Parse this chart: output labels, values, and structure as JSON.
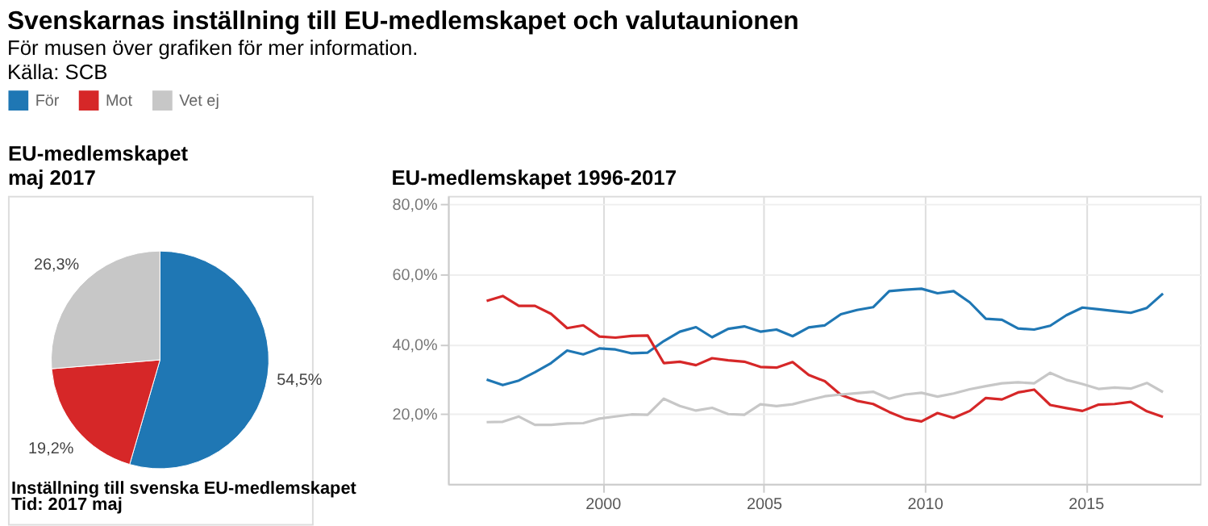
{
  "chart_data": [
    {
      "type": "other",
      "title": "Svenskarnas inställning till EU-medlemskapet och valutaunionen",
      "subtitle": "För musen över grafiken för mer information.",
      "annotations": [
        "Källa: SCB"
      ]
    },
    {
      "type": "pie",
      "title": "EU-medlemskapet\nmaj 2017",
      "categories": [
        "För",
        "Mot",
        "Vet ej"
      ],
      "values": [
        54.5,
        19.2,
        26.3
      ],
      "colors": [
        "#1f77b4",
        "#d62728",
        "#c7c7c7"
      ],
      "legend": "top",
      "value_labels": [
        "54,5%",
        "19,2%",
        "26,3%"
      ],
      "annotations": [
        "Inställning till svenska EU-medlemskapet",
        "Tid: 2017 maj"
      ]
    },
    {
      "type": "line",
      "title": "EU-medlemskapet 1996-2017",
      "x": [
        1996.4,
        1996.9,
        1997.4,
        1997.9,
        1998.4,
        1998.9,
        1999.4,
        1999.9,
        2000.4,
        2000.9,
        2001.4,
        2001.9,
        2002.4,
        2002.9,
        2003.4,
        2003.9,
        2004.4,
        2004.9,
        2005.4,
        2005.9,
        2006.4,
        2006.9,
        2007.4,
        2007.9,
        2008.4,
        2008.9,
        2009.4,
        2009.9,
        2010.4,
        2010.9,
        2011.4,
        2011.9,
        2012.4,
        2012.9,
        2013.4,
        2013.9,
        2014.4,
        2014.9,
        2015.4,
        2015.9,
        2016.4,
        2016.9,
        2017.4
      ],
      "xlim": [
        1995.2,
        2018.55
      ],
      "xticks": [
        2000,
        2005,
        2010,
        2015
      ],
      "ylim": [
        0,
        82.5
      ],
      "yticks": [
        {
          "value": 20,
          "label": "20,0%"
        },
        {
          "value": 40,
          "label": "40,0%"
        },
        {
          "value": 60,
          "label": "60,0%"
        },
        {
          "value": 80,
          "label": "80,0%"
        }
      ],
      "grid": true,
      "series": [
        {
          "name": "För",
          "color": "#1f77b4",
          "values": [
            29.9,
            28.3,
            29.6,
            32.0,
            34.6,
            38.2,
            37.1,
            38.8,
            38.5,
            37.4,
            37.6,
            40.9,
            43.6,
            44.9,
            42.0,
            44.4,
            45.1,
            43.6,
            44.2,
            42.3,
            44.8,
            45.4,
            48.6,
            49.8,
            50.6,
            55.2,
            55.6,
            55.9,
            54.6,
            55.2,
            52.0,
            47.3,
            47.0,
            44.5,
            44.2,
            45.3,
            48.3,
            50.5,
            50.0,
            49.5,
            49.0,
            50.4,
            54.5
          ]
        },
        {
          "name": "Mot",
          "color": "#d62728",
          "values": [
            52.4,
            53.8,
            51.0,
            51.0,
            48.7,
            44.6,
            45.4,
            42.2,
            41.9,
            42.4,
            42.5,
            34.6,
            35.0,
            34.0,
            36.0,
            35.4,
            35.0,
            33.5,
            33.3,
            34.9,
            31.2,
            29.4,
            25.5,
            23.8,
            22.9,
            20.6,
            18.7,
            17.9,
            20.3,
            18.9,
            20.9,
            24.6,
            24.2,
            26.2,
            27.0,
            22.6,
            21.7,
            20.9,
            22.7,
            22.9,
            23.5,
            20.8,
            19.2
          ]
        },
        {
          "name": "Vet ej",
          "color": "#c7c7c7",
          "values": [
            17.7,
            17.8,
            19.3,
            16.9,
            16.9,
            17.3,
            17.4,
            18.7,
            19.3,
            19.9,
            19.8,
            24.4,
            22.3,
            21.0,
            21.8,
            20.0,
            19.8,
            22.8,
            22.3,
            22.8,
            24.0,
            25.1,
            25.6,
            26.0,
            26.4,
            24.4,
            25.6,
            26.1,
            25.0,
            25.9,
            27.1,
            28.0,
            28.8,
            29.1,
            28.8,
            31.8,
            29.8,
            28.6,
            27.2,
            27.6,
            27.3,
            28.9,
            26.3
          ]
        }
      ]
    }
  ]
}
